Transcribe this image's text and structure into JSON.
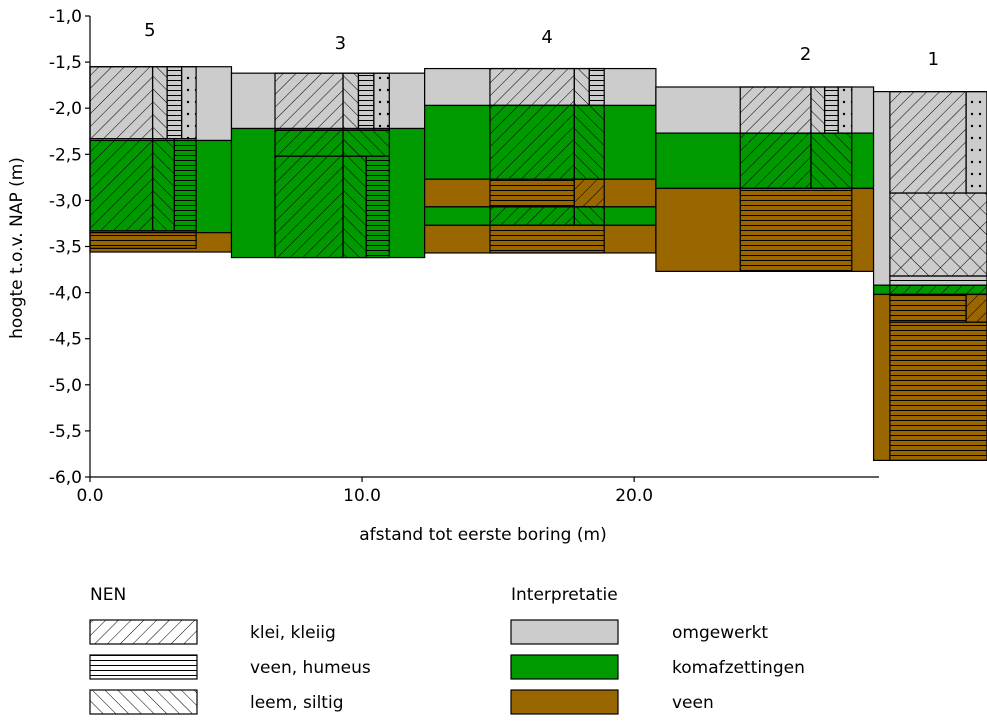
{
  "chart_data": {
    "type": "borehole cross-section",
    "xlabel": "afstand tot eerste boring (m)",
    "ylabel": "hoogte t.o.v. NAP (m)",
    "xlim": [
      0,
      29
    ],
    "ylim": [
      -6.0,
      -1.0
    ],
    "x_ticks": [
      {
        "value": 0,
        "label": "0.0"
      },
      {
        "value": 10,
        "label": "10.0"
      },
      {
        "value": 20,
        "label": "20.0"
      }
    ],
    "y_ticks": [
      {
        "value": -1.0,
        "label": "-1,0"
      },
      {
        "value": -1.5,
        "label": "-1,5"
      },
      {
        "value": -2.0,
        "label": "-2,0"
      },
      {
        "value": -2.5,
        "label": "-2,5"
      },
      {
        "value": -3.0,
        "label": "-3,0"
      },
      {
        "value": -3.5,
        "label": "-3,5"
      },
      {
        "value": -4.0,
        "label": "-4,0"
      },
      {
        "value": -4.5,
        "label": "-4,5"
      },
      {
        "value": -5.0,
        "label": "-5,0"
      },
      {
        "value": -5.5,
        "label": "-5,5"
      },
      {
        "value": -6.0,
        "label": "-6,0"
      }
    ],
    "colors": {
      "omgewerkt": "#cccccc",
      "komafzettingen": "#009900",
      "veen": "#996600"
    },
    "boreholes": [
      {
        "label": "5",
        "label_x": 2.2,
        "interp_x": [
          0,
          5.2
        ],
        "interpretation": [
          {
            "top": -1.55,
            "bottom": -2.35,
            "class": "omgewerkt"
          },
          {
            "top": -2.35,
            "bottom": -3.35,
            "class": "komafzettingen"
          },
          {
            "top": -3.35,
            "bottom": -3.56,
            "class": "veen"
          }
        ],
        "nen_x": [
          0,
          3.9
        ],
        "nen_main_x": [
          0,
          2.3
        ],
        "nen": [
          {
            "top": -1.55,
            "bottom": -2.33,
            "main": "klei",
            "sub": [
              "leem",
              "veen",
              "zand"
            ]
          },
          {
            "top": -2.33,
            "bottom": -3.33,
            "main": "klei",
            "sub": [
              "leem",
              "veen"
            ]
          },
          {
            "top": -3.33,
            "bottom": -3.52,
            "main": "veen",
            "sub": []
          }
        ]
      },
      {
        "label": "3",
        "label_x": 9.2,
        "interp_x": [
          5.2,
          12.3
        ],
        "interpretation": [
          {
            "top": -1.62,
            "bottom": -2.22,
            "class": "omgewerkt"
          },
          {
            "top": -2.22,
            "bottom": -3.62,
            "class": "komafzettingen"
          }
        ],
        "nen_x": [
          6.8,
          11.0
        ],
        "nen_main_x": [
          6.8,
          9.3
        ],
        "nen": [
          {
            "top": -1.62,
            "bottom": -2.24,
            "main": "klei",
            "sub": [
              "leem",
              "veen",
              "zand"
            ]
          },
          {
            "top": -2.24,
            "bottom": -2.52,
            "main": "klei",
            "sub": [
              "leem"
            ]
          },
          {
            "top": -2.52,
            "bottom": -3.62,
            "main": "klei",
            "sub": [
              "leem",
              "veen"
            ]
          }
        ]
      },
      {
        "label": "4",
        "label_x": 16.8,
        "interp_x": [
          12.3,
          20.8
        ],
        "interpretation": [
          {
            "top": -1.57,
            "bottom": -1.97,
            "class": "omgewerkt"
          },
          {
            "top": -1.97,
            "bottom": -2.77,
            "class": "komafzettingen"
          },
          {
            "top": -2.77,
            "bottom": -3.07,
            "class": "veen"
          },
          {
            "top": -3.07,
            "bottom": -3.27,
            "class": "komafzettingen"
          },
          {
            "top": -3.27,
            "bottom": -3.57,
            "class": "veen"
          }
        ],
        "nen_x": [
          14.7,
          18.9
        ],
        "nen_main_x": [
          14.7,
          17.8
        ],
        "nen": [
          {
            "top": -1.57,
            "bottom": -1.97,
            "main": "klei",
            "sub": [
              "leem",
              "veen"
            ]
          },
          {
            "top": -1.97,
            "bottom": -2.77,
            "main": "klei",
            "sub": [
              "leem"
            ]
          },
          {
            "top": -2.77,
            "bottom": -3.07,
            "main": "veen",
            "sub": [
              "klei"
            ]
          },
          {
            "top": -3.07,
            "bottom": -3.27,
            "main": "klei",
            "sub": [
              "leem"
            ]
          },
          {
            "top": -3.27,
            "bottom": -3.57,
            "main": "veen",
            "sub": []
          }
        ]
      },
      {
        "label": "2",
        "label_x": 26.3,
        "interp_x": [
          20.8,
          28.8
        ],
        "interpretation": [
          {
            "top": -1.77,
            "bottom": -2.27,
            "class": "omgewerkt"
          },
          {
            "top": -2.27,
            "bottom": -2.87,
            "class": "komafzettingen"
          },
          {
            "top": -2.87,
            "bottom": -3.77,
            "class": "veen"
          }
        ],
        "nen_x": [
          23.9,
          28.0
        ],
        "nen_main_x": [
          23.9,
          26.5
        ],
        "nen": [
          {
            "top": -1.77,
            "bottom": -2.27,
            "main": "klei",
            "sub": [
              "leem",
              "veen",
              "zand"
            ]
          },
          {
            "top": -2.27,
            "bottom": -2.87,
            "main": "klei",
            "sub": [
              "leem"
            ]
          },
          {
            "top": -2.87,
            "bottom": -3.77,
            "main": "veen",
            "sub": []
          }
        ]
      },
      {
        "label": "1",
        "label_x": 31.0,
        "interp_x": [
          28.8,
          33.5
        ],
        "interpretation": [
          {
            "top": -1.82,
            "bottom": -3.92,
            "class": "omgewerkt"
          },
          {
            "top": -3.92,
            "bottom": -4.02,
            "class": "komafzettingen"
          },
          {
            "top": -4.02,
            "bottom": -5.82,
            "class": "veen"
          }
        ],
        "nen_x": [
          29.4,
          33.5
        ],
        "nen_main_x": [
          29.4,
          32.2
        ],
        "nen": [
          {
            "top": -1.82,
            "bottom": -2.92,
            "main": "klei",
            "sub": [
              "zand"
            ]
          },
          {
            "top": -2.92,
            "bottom": -3.82,
            "main": "klei leem",
            "sub": []
          },
          {
            "top": -3.82,
            "bottom": -3.92,
            "main": "veen",
            "sub": []
          },
          {
            "top": -3.92,
            "bottom": -4.02,
            "main": "klei",
            "sub": []
          },
          {
            "top": -4.02,
            "bottom": -4.32,
            "main": "veen",
            "sub": [
              "klei"
            ]
          },
          {
            "top": -4.32,
            "bottom": -5.82,
            "main": "veen",
            "sub": []
          }
        ]
      }
    ]
  },
  "legend": {
    "nen_title": "NEN",
    "interp_title": "Interpretatie",
    "nen_items": [
      {
        "pattern": "klei",
        "label": "klei, kleiig"
      },
      {
        "pattern": "veen",
        "label": "veen, humeus"
      },
      {
        "pattern": "leem",
        "label": "leem, siltig"
      }
    ],
    "interp_items": [
      {
        "class": "omgewerkt",
        "label": "omgewerkt"
      },
      {
        "class": "komafzettingen",
        "label": "komafzettingen"
      },
      {
        "class": "veen",
        "label": "veen"
      }
    ]
  }
}
